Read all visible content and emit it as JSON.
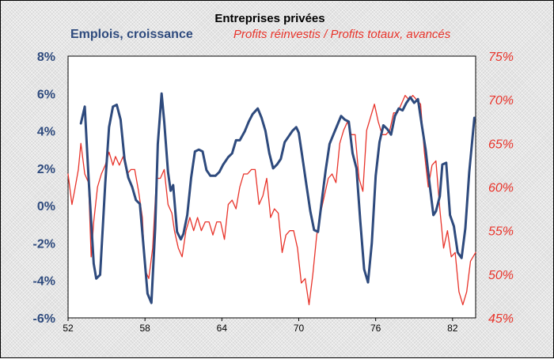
{
  "chart_data": {
    "type": "line",
    "title": "Entreprises privées",
    "x_tick_labels": [
      "52",
      "58",
      "64",
      "70",
      "76",
      "82"
    ],
    "x_ticks": [
      1952,
      1958,
      1964,
      1970,
      1976,
      1982
    ],
    "xlim": [
      1952,
      1983.8
    ],
    "left_axis": {
      "ylim": [
        -6,
        8
      ],
      "tick_labels": [
        "8%",
        "6%",
        "4%",
        "2%",
        "0%",
        "-2%",
        "-4%",
        "-6%"
      ],
      "tick_values": [
        8,
        6,
        4,
        2,
        0,
        -2,
        -4,
        -6
      ]
    },
    "right_axis": {
      "ylim": [
        45,
        75
      ],
      "tick_labels": [
        "75%",
        "70%",
        "65%",
        "60%",
        "55%",
        "50%",
        "45%"
      ],
      "tick_values": [
        75,
        70,
        65,
        60,
        55,
        50,
        45
      ]
    },
    "series": [
      {
        "name": "Emplois, croissance",
        "axis": "left",
        "color": "#2e4a7d",
        "x": [
          1953.0,
          1953.3,
          1953.6,
          1954.0,
          1954.2,
          1954.5,
          1954.9,
          1955.2,
          1955.5,
          1955.8,
          1956.1,
          1956.4,
          1956.7,
          1957.0,
          1957.3,
          1957.6,
          1957.9,
          1958.2,
          1958.5,
          1958.8,
          1959.0,
          1959.3,
          1959.5,
          1959.8,
          1960.0,
          1960.2,
          1960.5,
          1960.8,
          1961.0,
          1961.3,
          1961.6,
          1961.9,
          1962.2,
          1962.5,
          1962.8,
          1963.1,
          1963.5,
          1963.8,
          1964.1,
          1964.5,
          1964.8,
          1965.1,
          1965.4,
          1965.8,
          1966.1,
          1966.4,
          1966.8,
          1967.1,
          1967.4,
          1967.7,
          1968.0,
          1968.3,
          1968.6,
          1968.9,
          1969.2,
          1969.5,
          1969.8,
          1970.0,
          1970.3,
          1970.6,
          1970.9,
          1971.2,
          1971.5,
          1971.8,
          1972.1,
          1972.4,
          1972.7,
          1973.0,
          1973.3,
          1973.6,
          1973.9,
          1974.2,
          1974.5,
          1974.8,
          1975.1,
          1975.4,
          1975.7,
          1976.0,
          1976.3,
          1976.6,
          1976.9,
          1977.2,
          1977.5,
          1977.8,
          1978.1,
          1978.4,
          1978.7,
          1979.0,
          1979.3,
          1979.6,
          1979.9,
          1980.2,
          1980.5,
          1980.7,
          1981.0,
          1981.2,
          1981.5,
          1981.8,
          1982.1,
          1982.4,
          1982.7,
          1983.0,
          1983.3,
          1983.7
        ],
        "values": [
          4.4,
          5.3,
          1.5,
          -3.1,
          -3.9,
          -3.7,
          1.2,
          4.2,
          5.3,
          5.4,
          4.6,
          2.5,
          1.5,
          1.0,
          0.3,
          0.1,
          -2.3,
          -4.7,
          -5.2,
          -1.2,
          3.3,
          6.0,
          4.5,
          1.8,
          0.8,
          1.1,
          -1.4,
          -1.8,
          -1.5,
          -0.5,
          1.5,
          2.9,
          3.0,
          2.9,
          1.9,
          1.6,
          1.6,
          1.8,
          2.2,
          2.6,
          2.8,
          3.5,
          3.5,
          4.0,
          4.5,
          4.9,
          5.2,
          4.7,
          4.0,
          2.8,
          2.0,
          2.2,
          2.5,
          3.4,
          3.7,
          4.0,
          4.2,
          3.9,
          2.5,
          1.1,
          -0.3,
          -1.3,
          -1.4,
          0.3,
          1.9,
          3.3,
          3.8,
          4.3,
          4.8,
          4.6,
          4.5,
          2.8,
          2.0,
          -0.8,
          -3.4,
          -4.1,
          -2.0,
          1.6,
          3.4,
          4.3,
          4.1,
          3.8,
          4.8,
          5.2,
          5.1,
          5.5,
          5.8,
          5.5,
          5.7,
          4.3,
          3.0,
          1.2,
          -0.5,
          -0.3,
          0.5,
          2.2,
          2.3,
          -0.5,
          -1.1,
          -2.5,
          -2.8,
          -1.2,
          1.8,
          4.7
        ]
      },
      {
        "name": "Profits réinvestis / Profits totaux, avancés",
        "axis": "right",
        "color": "#e8332a",
        "x": [
          1952.0,
          1952.3,
          1952.5,
          1952.8,
          1953.0,
          1953.3,
          1953.6,
          1953.8,
          1954.0,
          1954.3,
          1954.6,
          1954.9,
          1955.2,
          1955.5,
          1955.7,
          1956.0,
          1956.3,
          1956.6,
          1956.9,
          1957.2,
          1957.5,
          1957.8,
          1958.0,
          1958.3,
          1958.6,
          1958.9,
          1959.2,
          1959.5,
          1959.8,
          1960.1,
          1960.3,
          1960.6,
          1960.9,
          1961.2,
          1961.5,
          1961.8,
          1962.1,
          1962.4,
          1962.7,
          1963.0,
          1963.3,
          1963.6,
          1963.9,
          1964.2,
          1964.5,
          1964.8,
          1965.1,
          1965.4,
          1965.7,
          1966.0,
          1966.3,
          1966.6,
          1966.9,
          1967.2,
          1967.5,
          1967.8,
          1968.1,
          1968.4,
          1968.7,
          1969.0,
          1969.3,
          1969.6,
          1969.9,
          1970.2,
          1970.5,
          1970.8,
          1971.1,
          1971.4,
          1971.7,
          1972.0,
          1972.3,
          1972.6,
          1972.9,
          1973.2,
          1973.5,
          1973.8,
          1974.1,
          1974.4,
          1974.7,
          1975.0,
          1975.3,
          1975.6,
          1975.9,
          1976.2,
          1976.5,
          1976.8,
          1977.1,
          1977.4,
          1977.7,
          1978.0,
          1978.3,
          1978.6,
          1978.9,
          1979.2,
          1979.5,
          1979.8,
          1980.1,
          1980.4,
          1980.7,
          1981.0,
          1981.3,
          1981.6,
          1981.9,
          1982.2,
          1982.5,
          1982.8,
          1983.1,
          1983.4,
          1983.8
        ],
        "values": [
          61.5,
          58.0,
          59.5,
          62.0,
          65.0,
          61.5,
          60.5,
          52.0,
          56.0,
          60.0,
          61.5,
          62.5,
          64.0,
          62.5,
          63.5,
          62.5,
          63.5,
          61.5,
          62.0,
          62.0,
          59.5,
          56.5,
          50.5,
          49.5,
          53.0,
          61.0,
          61.0,
          62.0,
          58.0,
          57.0,
          55.0,
          53.0,
          52.0,
          55.0,
          56.5,
          55.0,
          56.5,
          55.0,
          56.0,
          56.0,
          54.5,
          56.0,
          56.0,
          54.0,
          58.0,
          58.5,
          57.5,
          60.0,
          61.5,
          61.5,
          62.0,
          62.0,
          58.0,
          59.0,
          61.0,
          56.5,
          57.5,
          57.0,
          52.5,
          54.5,
          55.0,
          55.0,
          53.0,
          49.0,
          49.5,
          46.5,
          50.0,
          54.5,
          57.0,
          59.0,
          61.0,
          61.5,
          60.5,
          65.0,
          66.5,
          67.5,
          66.0,
          66.0,
          61.0,
          59.5,
          66.5,
          68.0,
          69.5,
          67.5,
          66.0,
          66.0,
          66.5,
          68.5,
          68.5,
          69.5,
          70.5,
          70.0,
          70.5,
          70.0,
          69.5,
          64.0,
          60.0,
          62.5,
          63.0,
          57.5,
          53.0,
          55.0,
          52.0,
          52.5,
          48.0,
          46.5,
          48.0,
          51.5,
          52.5
        ]
      }
    ]
  },
  "legend": {
    "left": "Emplois, croissance",
    "right": "Profits réinvestis / Profits totaux, avancés"
  }
}
